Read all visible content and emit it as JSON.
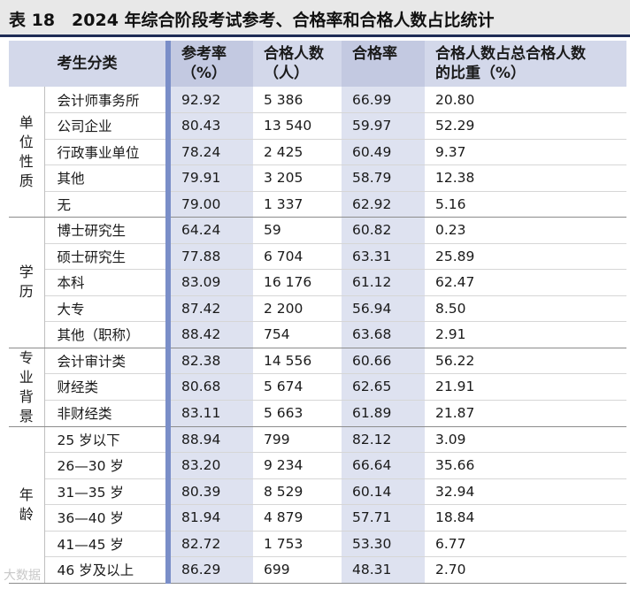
{
  "title": "表 18　2024 年综合阶段考试参考、合格率和合格人数占比统计",
  "headers": {
    "category": "考生分类",
    "participation": [
      "参考率",
      "（%）"
    ],
    "passed_count": [
      "合格人数",
      "（人）"
    ],
    "pass_rate": [
      "合格率",
      "（%）"
    ],
    "share": [
      "合格人数占总合格人数",
      "的比重（%）"
    ]
  },
  "groups": [
    {
      "name": "单位性质",
      "rows": [
        {
          "cat": "会计师事务所",
          "participation": "92.92",
          "passed": "5 386",
          "rate": "66.99",
          "share": "20.80"
        },
        {
          "cat": "公司企业",
          "participation": "80.43",
          "passed": "13 540",
          "rate": "59.97",
          "share": "52.29"
        },
        {
          "cat": "行政事业单位",
          "participation": "78.24",
          "passed": "2 425",
          "rate": "60.49",
          "share": "9.37"
        },
        {
          "cat": "其他",
          "participation": "79.91",
          "passed": "3 205",
          "rate": "58.79",
          "share": "12.38"
        },
        {
          "cat": "无",
          "participation": "79.00",
          "passed": "1 337",
          "rate": "62.92",
          "share": "5.16"
        }
      ]
    },
    {
      "name": "学历",
      "rows": [
        {
          "cat": "博士研究生",
          "participation": "64.24",
          "passed": "59",
          "rate": "60.82",
          "share": "0.23"
        },
        {
          "cat": "硕士研究生",
          "participation": "77.88",
          "passed": "6 704",
          "rate": "63.31",
          "share": "25.89"
        },
        {
          "cat": "本科",
          "participation": "83.09",
          "passed": "16 176",
          "rate": "61.12",
          "share": "62.47"
        },
        {
          "cat": "大专",
          "participation": "87.42",
          "passed": "2 200",
          "rate": "56.94",
          "share": "8.50"
        },
        {
          "cat": "其他（职称）",
          "participation": "88.42",
          "passed": "754",
          "rate": "63.68",
          "share": "2.91"
        }
      ]
    },
    {
      "name": "专业背景",
      "rows": [
        {
          "cat": "会计审计类",
          "participation": "82.38",
          "passed": "14 556",
          "rate": "60.66",
          "share": "56.22"
        },
        {
          "cat": "财经类",
          "participation": "80.68",
          "passed": "5 674",
          "rate": "62.65",
          "share": "21.91"
        },
        {
          "cat": "非财经类",
          "participation": "83.11",
          "passed": "5 663",
          "rate": "61.89",
          "share": "21.87"
        }
      ]
    },
    {
      "name": "年龄",
      "rows": [
        {
          "cat": "25 岁以下",
          "participation": "88.94",
          "passed": "799",
          "rate": "82.12",
          "share": "3.09"
        },
        {
          "cat": "26—30 岁",
          "participation": "83.20",
          "passed": "9 234",
          "rate": "66.64",
          "share": "35.66"
        },
        {
          "cat": "31—35 岁",
          "participation": "80.39",
          "passed": "8 529",
          "rate": "60.14",
          "share": "32.94"
        },
        {
          "cat": "36—40 岁",
          "participation": "81.94",
          "passed": "4 879",
          "rate": "57.71",
          "share": "18.84"
        },
        {
          "cat": "41—45 岁",
          "participation": "82.72",
          "passed": "1 753",
          "rate": "53.30",
          "share": "6.77"
        },
        {
          "cat": "46 岁及以上",
          "participation": "86.29",
          "passed": "699",
          "rate": "48.31",
          "share": "2.70"
        }
      ]
    }
  ],
  "watermark": "大数据"
}
